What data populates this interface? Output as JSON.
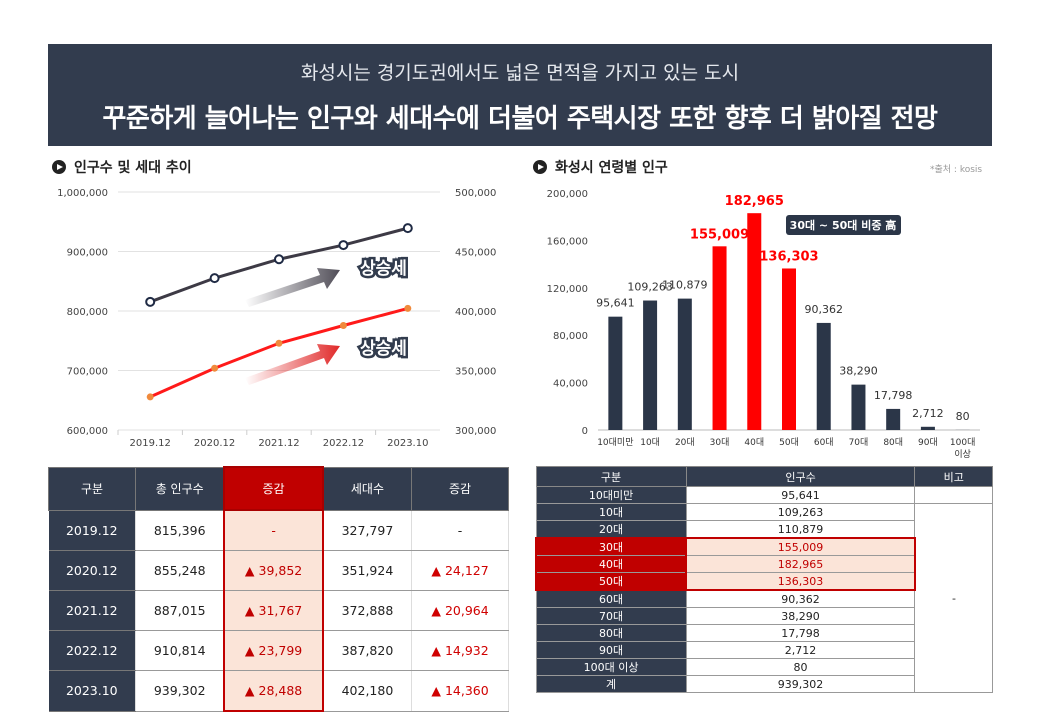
{
  "header": {
    "subtitle": "화성시는 경기도권에서도 넓은 면적을 가지고 있는 도시",
    "title": "꾸준하게 늘어나는 인구와 세대수에 더불어 주택시장 또한 향후 더 밝아질 전망"
  },
  "left_section_title": "인구수 및 세대 추이",
  "right_section_title": "화성시 연령별 인구",
  "source_note": "*출처 : kosis",
  "chart_data": [
    {
      "type": "line",
      "x": [
        "2019.12",
        "2020.12",
        "2021.12",
        "2022.12",
        "2023.10"
      ],
      "series": [
        {
          "name": "인구수",
          "axis": "left",
          "color": "#3d3a45",
          "values": [
            815396,
            855248,
            887015,
            910814,
            939302
          ]
        },
        {
          "name": "세대수",
          "axis": "right",
          "color": "#ff1a1a",
          "values": [
            327797,
            351924,
            372888,
            387820,
            402180
          ]
        }
      ],
      "y_left_ticks": [
        "1,000,000",
        "900,000",
        "800,000",
        "700,000",
        "600,000"
      ],
      "y_right_ticks": [
        "500,000",
        "450,000",
        "400,000",
        "350,000",
        "300,000"
      ],
      "ylim_left": [
        600000,
        1000000
      ],
      "ylim_right": [
        300000,
        500000
      ],
      "annotations": [
        "상승세",
        "상승세"
      ],
      "grid": true
    },
    {
      "type": "bar",
      "categories": [
        "10대미만",
        "10대",
        "20대",
        "30대",
        "40대",
        "50대",
        "60대",
        "70대",
        "80대",
        "90대",
        "100대 이상"
      ],
      "values": [
        95641,
        109263,
        110879,
        155009,
        182965,
        136303,
        90362,
        38290,
        17798,
        2712,
        80
      ],
      "value_labels": [
        "95,641",
        "109,263",
        "110,879",
        "155,009",
        "182,965",
        "136,303",
        "90,362",
        "38,290",
        "17,798",
        "2,712",
        "80"
      ],
      "highlight": [
        false,
        false,
        false,
        true,
        true,
        true,
        false,
        false,
        false,
        false,
        false
      ],
      "y_ticks": [
        "200,000",
        "160,000",
        "120,000",
        "80,000",
        "40,000",
        "0"
      ],
      "ylim": [
        0,
        200000
      ],
      "colors": {
        "normal": "#2b3648",
        "highlight": "#ff0000"
      },
      "annotation": "30대 ~ 50대 비중 高"
    }
  ],
  "table1": {
    "headers": [
      "구분",
      "총 인구수",
      "증감",
      "세대수",
      "증감"
    ],
    "rows": [
      [
        "2019.12",
        "815,396",
        "-",
        "327,797",
        "-"
      ],
      [
        "2020.12",
        "855,248",
        "▲ 39,852",
        "351,924",
        "▲ 24,127"
      ],
      [
        "2021.12",
        "887,015",
        "▲ 31,767",
        "372,888",
        "▲ 20,964"
      ],
      [
        "2022.12",
        "910,814",
        "▲ 23,799",
        "387,820",
        "▲ 14,932"
      ],
      [
        "2023.10",
        "939,302",
        "▲ 28,488",
        "402,180",
        "▲ 14,360"
      ]
    ]
  },
  "table2": {
    "headers": [
      "구분",
      "인구수",
      "비고"
    ],
    "rows": [
      [
        "10대미만",
        "95,641"
      ],
      [
        "10대",
        "109,263"
      ],
      [
        "20대",
        "110,879"
      ],
      [
        "30대",
        "155,009"
      ],
      [
        "40대",
        "182,965"
      ],
      [
        "50대",
        "136,303"
      ],
      [
        "60대",
        "90,362"
      ],
      [
        "70대",
        "38,290"
      ],
      [
        "80대",
        "17,798"
      ],
      [
        "90대",
        "2,712"
      ],
      [
        "100대 이상",
        "80"
      ],
      [
        "계",
        "939,302"
      ]
    ],
    "note": "-"
  }
}
